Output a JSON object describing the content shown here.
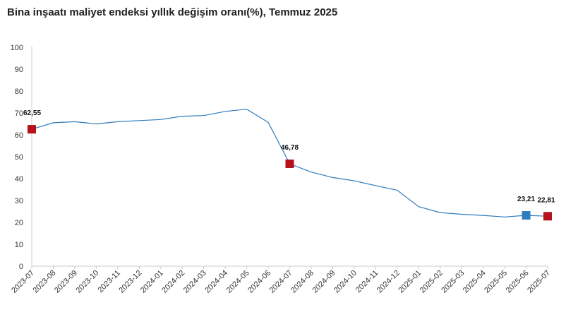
{
  "chart_data": {
    "type": "line",
    "title": "Bina inşaatı maliyet endeksi yıllık değişim oranı(%), Temmuz 2025",
    "xlabel": "",
    "ylabel": "",
    "ylim": [
      0,
      100
    ],
    "yticks": [
      "0",
      "10",
      "20",
      "30",
      "40",
      "50",
      "60",
      "70",
      "80",
      "90",
      "100"
    ],
    "grid": false,
    "legend": "none",
    "categories": [
      "2023-07",
      "2023-08",
      "2023-09",
      "2023-10",
      "2023-11",
      "2023-12",
      "2024-01",
      "2024-02",
      "2024-03",
      "2024-04",
      "2024-05",
      "2024-06",
      "2024-07",
      "2024-08",
      "2024-09",
      "2024-10",
      "2024-11",
      "2024-12",
      "2025-01",
      "2025-02",
      "2025-03",
      "2025-04",
      "2025-05",
      "2025-06",
      "2025-07"
    ],
    "series": [
      {
        "values": [
          62.55,
          65.5,
          66.0,
          65.0,
          66.0,
          66.5,
          67.0,
          68.5,
          68.8,
          70.7,
          71.7,
          65.7,
          46.78,
          43.0,
          40.5,
          39.0,
          36.8,
          34.7,
          27.2,
          24.5,
          23.7,
          23.2,
          22.5,
          23.21,
          22.81
        ],
        "color": "#2e7bbd"
      }
    ],
    "highlighted_points": [
      {
        "category": "2023-07",
        "value": 62.55,
        "label": "62,55",
        "color": "#b5121b"
      },
      {
        "category": "2024-07",
        "value": 46.78,
        "label": "46,78",
        "color": "#b5121b"
      },
      {
        "category": "2025-06",
        "value": 23.21,
        "label": "23,21",
        "color": "#2e7bbd"
      },
      {
        "category": "2025-07",
        "value": 22.81,
        "label": "22,81",
        "color": "#b5121b"
      }
    ],
    "colors": {
      "axis": "#cccccc",
      "line": "#2e7bbd"
    }
  }
}
